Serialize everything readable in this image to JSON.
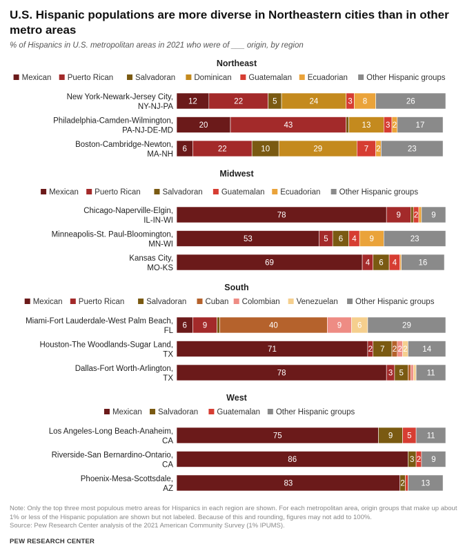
{
  "title": "U.S. Hispanic populations are more diverse in Northeastern cities than in other metro areas",
  "subtitle": "% of Hispanics in U.S. metropolitan areas in 2021 who were of ___ origin, by region",
  "note": "Note: Only the top three most populous metro areas for Hispanics in each region are shown. For each metropolitan area, origin groups that make up about 1% or less of the Hispanic population are shown but not labeled. Because of this and rounding, figures may not add to 100%.",
  "source": "Source: Pew Research Center analysis of the 2021 American Community Survey (1% IPUMS).",
  "org": "PEW RESEARCH CENTER",
  "colors": {
    "Mexican": "#6b1a1a",
    "Puerto Rican": "#a32a2a",
    "Salvadoran": "#7a5a12",
    "Dominican": "#c48a1e",
    "Cuban": "#b5622c",
    "Guatemalan": "#d63d32",
    "Ecuadorian": "#eaa33a",
    "Colombian": "#ee8c84",
    "Venezuelan": "#f5cf8e",
    "Other Hispanic groups": "#8a8a8a"
  },
  "chart_data": {
    "type": "bar",
    "orientation": "horizontal",
    "stacked": true,
    "units": "%",
    "xlim": [
      0,
      100
    ],
    "grid": false,
    "legend_position": "top",
    "panels": [
      {
        "region": "Northeast",
        "legend": [
          "Mexican",
          "Puerto Rican",
          "Salvadoran",
          "Dominican",
          "Guatemalan",
          "Ecuadorian",
          "Other Hispanic groups"
        ],
        "rows": [
          {
            "label": [
              "New York-Newark-Jersey City,",
              "NY-NJ-PA"
            ],
            "segments": [
              {
                "group": "Mexican",
                "value": 12,
                "label": "12"
              },
              {
                "group": "Puerto Rican",
                "value": 22,
                "label": "22"
              },
              {
                "group": "Salvadoran",
                "value": 5,
                "label": "5"
              },
              {
                "group": "Dominican",
                "value": 24,
                "label": "24"
              },
              {
                "group": "Guatemalan",
                "value": 3,
                "label": "3"
              },
              {
                "group": "Ecuadorian",
                "value": 8,
                "label": "8"
              },
              {
                "group": "Other Hispanic groups",
                "value": 26,
                "label": "26"
              }
            ]
          },
          {
            "label": [
              "Philadelphia-Camden-Wilmington,",
              "PA-NJ-DE-MD"
            ],
            "segments": [
              {
                "group": "Mexican",
                "value": 20,
                "label": "20"
              },
              {
                "group": "Puerto Rican",
                "value": 43,
                "label": "43"
              },
              {
                "group": "Salvadoran",
                "value": 1,
                "label": ""
              },
              {
                "group": "Dominican",
                "value": 13,
                "label": "13"
              },
              {
                "group": "Guatemalan",
                "value": 3,
                "label": "3"
              },
              {
                "group": "Ecuadorian",
                "value": 2,
                "label": "2"
              },
              {
                "group": "Other Hispanic groups",
                "value": 17,
                "label": "17"
              }
            ]
          },
          {
            "label": [
              "Boston-Cambridge-Newton,",
              "MA-NH"
            ],
            "segments": [
              {
                "group": "Mexican",
                "value": 6,
                "label": "6"
              },
              {
                "group": "Puerto Rican",
                "value": 22,
                "label": "22"
              },
              {
                "group": "Salvadoran",
                "value": 10,
                "label": "10"
              },
              {
                "group": "Dominican",
                "value": 29,
                "label": "29"
              },
              {
                "group": "Guatemalan",
                "value": 7,
                "label": "7"
              },
              {
                "group": "Ecuadorian",
                "value": 2,
                "label": "2"
              },
              {
                "group": "Other Hispanic groups",
                "value": 23,
                "label": "23"
              }
            ]
          }
        ]
      },
      {
        "region": "Midwest",
        "legend": [
          "Mexican",
          "Puerto Rican",
          "Salvadoran",
          "Guatemalan",
          "Ecuadorian",
          "Other Hispanic groups"
        ],
        "rows": [
          {
            "label": [
              "Chicago-Naperville-Elgin,",
              "IL-IN-WI"
            ],
            "segments": [
              {
                "group": "Mexican",
                "value": 78,
                "label": "78"
              },
              {
                "group": "Puerto Rican",
                "value": 9,
                "label": "9"
              },
              {
                "group": "Salvadoran",
                "value": 1,
                "label": ""
              },
              {
                "group": "Guatemalan",
                "value": 2,
                "label": "2"
              },
              {
                "group": "Ecuadorian",
                "value": 1,
                "label": ""
              },
              {
                "group": "Other Hispanic groups",
                "value": 9,
                "label": "9"
              }
            ]
          },
          {
            "label": [
              "Minneapolis-St. Paul-Bloomington,",
              "MN-WI"
            ],
            "segments": [
              {
                "group": "Mexican",
                "value": 53,
                "label": "53"
              },
              {
                "group": "Puerto Rican",
                "value": 5,
                "label": "5"
              },
              {
                "group": "Salvadoran",
                "value": 6,
                "label": "6"
              },
              {
                "group": "Guatemalan",
                "value": 4,
                "label": "4"
              },
              {
                "group": "Ecuadorian",
                "value": 9,
                "label": "9"
              },
              {
                "group": "Other Hispanic groups",
                "value": 23,
                "label": "23"
              }
            ]
          },
          {
            "label": [
              "Kansas City,",
              "MO-KS"
            ],
            "segments": [
              {
                "group": "Mexican",
                "value": 69,
                "label": "69"
              },
              {
                "group": "Puerto Rican",
                "value": 4,
                "label": "4"
              },
              {
                "group": "Salvadoran",
                "value": 6,
                "label": "6"
              },
              {
                "group": "Guatemalan",
                "value": 4,
                "label": "4"
              },
              {
                "group": "Ecuadorian",
                "value": 0.5,
                "label": ""
              },
              {
                "group": "Other Hispanic groups",
                "value": 16,
                "label": "16"
              }
            ]
          }
        ]
      },
      {
        "region": "South",
        "legend": [
          "Mexican",
          "Puerto Rican",
          "Salvadoran",
          "Cuban",
          "Colombian",
          "Venezuelan",
          "Other Hispanic groups"
        ],
        "rows": [
          {
            "label": [
              "Miami-Fort Lauderdale-West Palm Beach,",
              "FL"
            ],
            "segments": [
              {
                "group": "Mexican",
                "value": 6,
                "label": "6"
              },
              {
                "group": "Puerto Rican",
                "value": 9,
                "label": "9"
              },
              {
                "group": "Salvadoran",
                "value": 1,
                "label": ""
              },
              {
                "group": "Cuban",
                "value": 40,
                "label": "40"
              },
              {
                "group": "Colombian",
                "value": 9,
                "label": "9"
              },
              {
                "group": "Venezuelan",
                "value": 6,
                "label": "6"
              },
              {
                "group": "Other Hispanic groups",
                "value": 29,
                "label": "29"
              }
            ]
          },
          {
            "label": [
              "Houston-The Woodlands-Sugar Land,",
              "TX"
            ],
            "segments": [
              {
                "group": "Mexican",
                "value": 71,
                "label": "71"
              },
              {
                "group": "Puerto Rican",
                "value": 2,
                "label": "2"
              },
              {
                "group": "Salvadoran",
                "value": 7,
                "label": "7"
              },
              {
                "group": "Cuban",
                "value": 2,
                "label": "2"
              },
              {
                "group": "Colombian",
                "value": 2,
                "label": "2"
              },
              {
                "group": "Venezuelan",
                "value": 2,
                "label": "2"
              },
              {
                "group": "Other Hispanic groups",
                "value": 14,
                "label": "14"
              }
            ]
          },
          {
            "label": [
              "Dallas-Fort Worth-Arlington,",
              "TX"
            ],
            "segments": [
              {
                "group": "Mexican",
                "value": 78,
                "label": "78"
              },
              {
                "group": "Puerto Rican",
                "value": 3,
                "label": "3"
              },
              {
                "group": "Salvadoran",
                "value": 5,
                "label": "5"
              },
              {
                "group": "Cuban",
                "value": 1,
                "label": ""
              },
              {
                "group": "Colombian",
                "value": 1,
                "label": ""
              },
              {
                "group": "Venezuelan",
                "value": 1,
                "label": ""
              },
              {
                "group": "Other Hispanic groups",
                "value": 11,
                "label": "11"
              }
            ]
          }
        ]
      },
      {
        "region": "West",
        "legend": [
          "Mexican",
          "Salvadoran",
          "Guatemalan",
          "Other Hispanic groups"
        ],
        "rows": [
          {
            "label": [
              "Los Angeles-Long Beach-Anaheim,",
              "CA"
            ],
            "segments": [
              {
                "group": "Mexican",
                "value": 75,
                "label": "75"
              },
              {
                "group": "Salvadoran",
                "value": 9,
                "label": "9"
              },
              {
                "group": "Guatemalan",
                "value": 5,
                "label": "5"
              },
              {
                "group": "Other Hispanic groups",
                "value": 11,
                "label": "11"
              }
            ]
          },
          {
            "label": [
              "Riverside-San Bernardino-Ontario,",
              "CA"
            ],
            "segments": [
              {
                "group": "Mexican",
                "value": 86,
                "label": "86"
              },
              {
                "group": "Salvadoran",
                "value": 3,
                "label": "3"
              },
              {
                "group": "Guatemalan",
                "value": 2,
                "label": "2"
              },
              {
                "group": "Other Hispanic groups",
                "value": 9,
                "label": "9"
              }
            ]
          },
          {
            "label": [
              "Phoenix-Mesa-Scottsdale,",
              "AZ"
            ],
            "segments": [
              {
                "group": "Mexican",
                "value": 83,
                "label": "83"
              },
              {
                "group": "Salvadoran",
                "value": 2,
                "label": "2"
              },
              {
                "group": "Guatemalan",
                "value": 1,
                "label": ""
              },
              {
                "group": "Other Hispanic groups",
                "value": 13,
                "label": "13"
              }
            ]
          }
        ]
      }
    ]
  }
}
